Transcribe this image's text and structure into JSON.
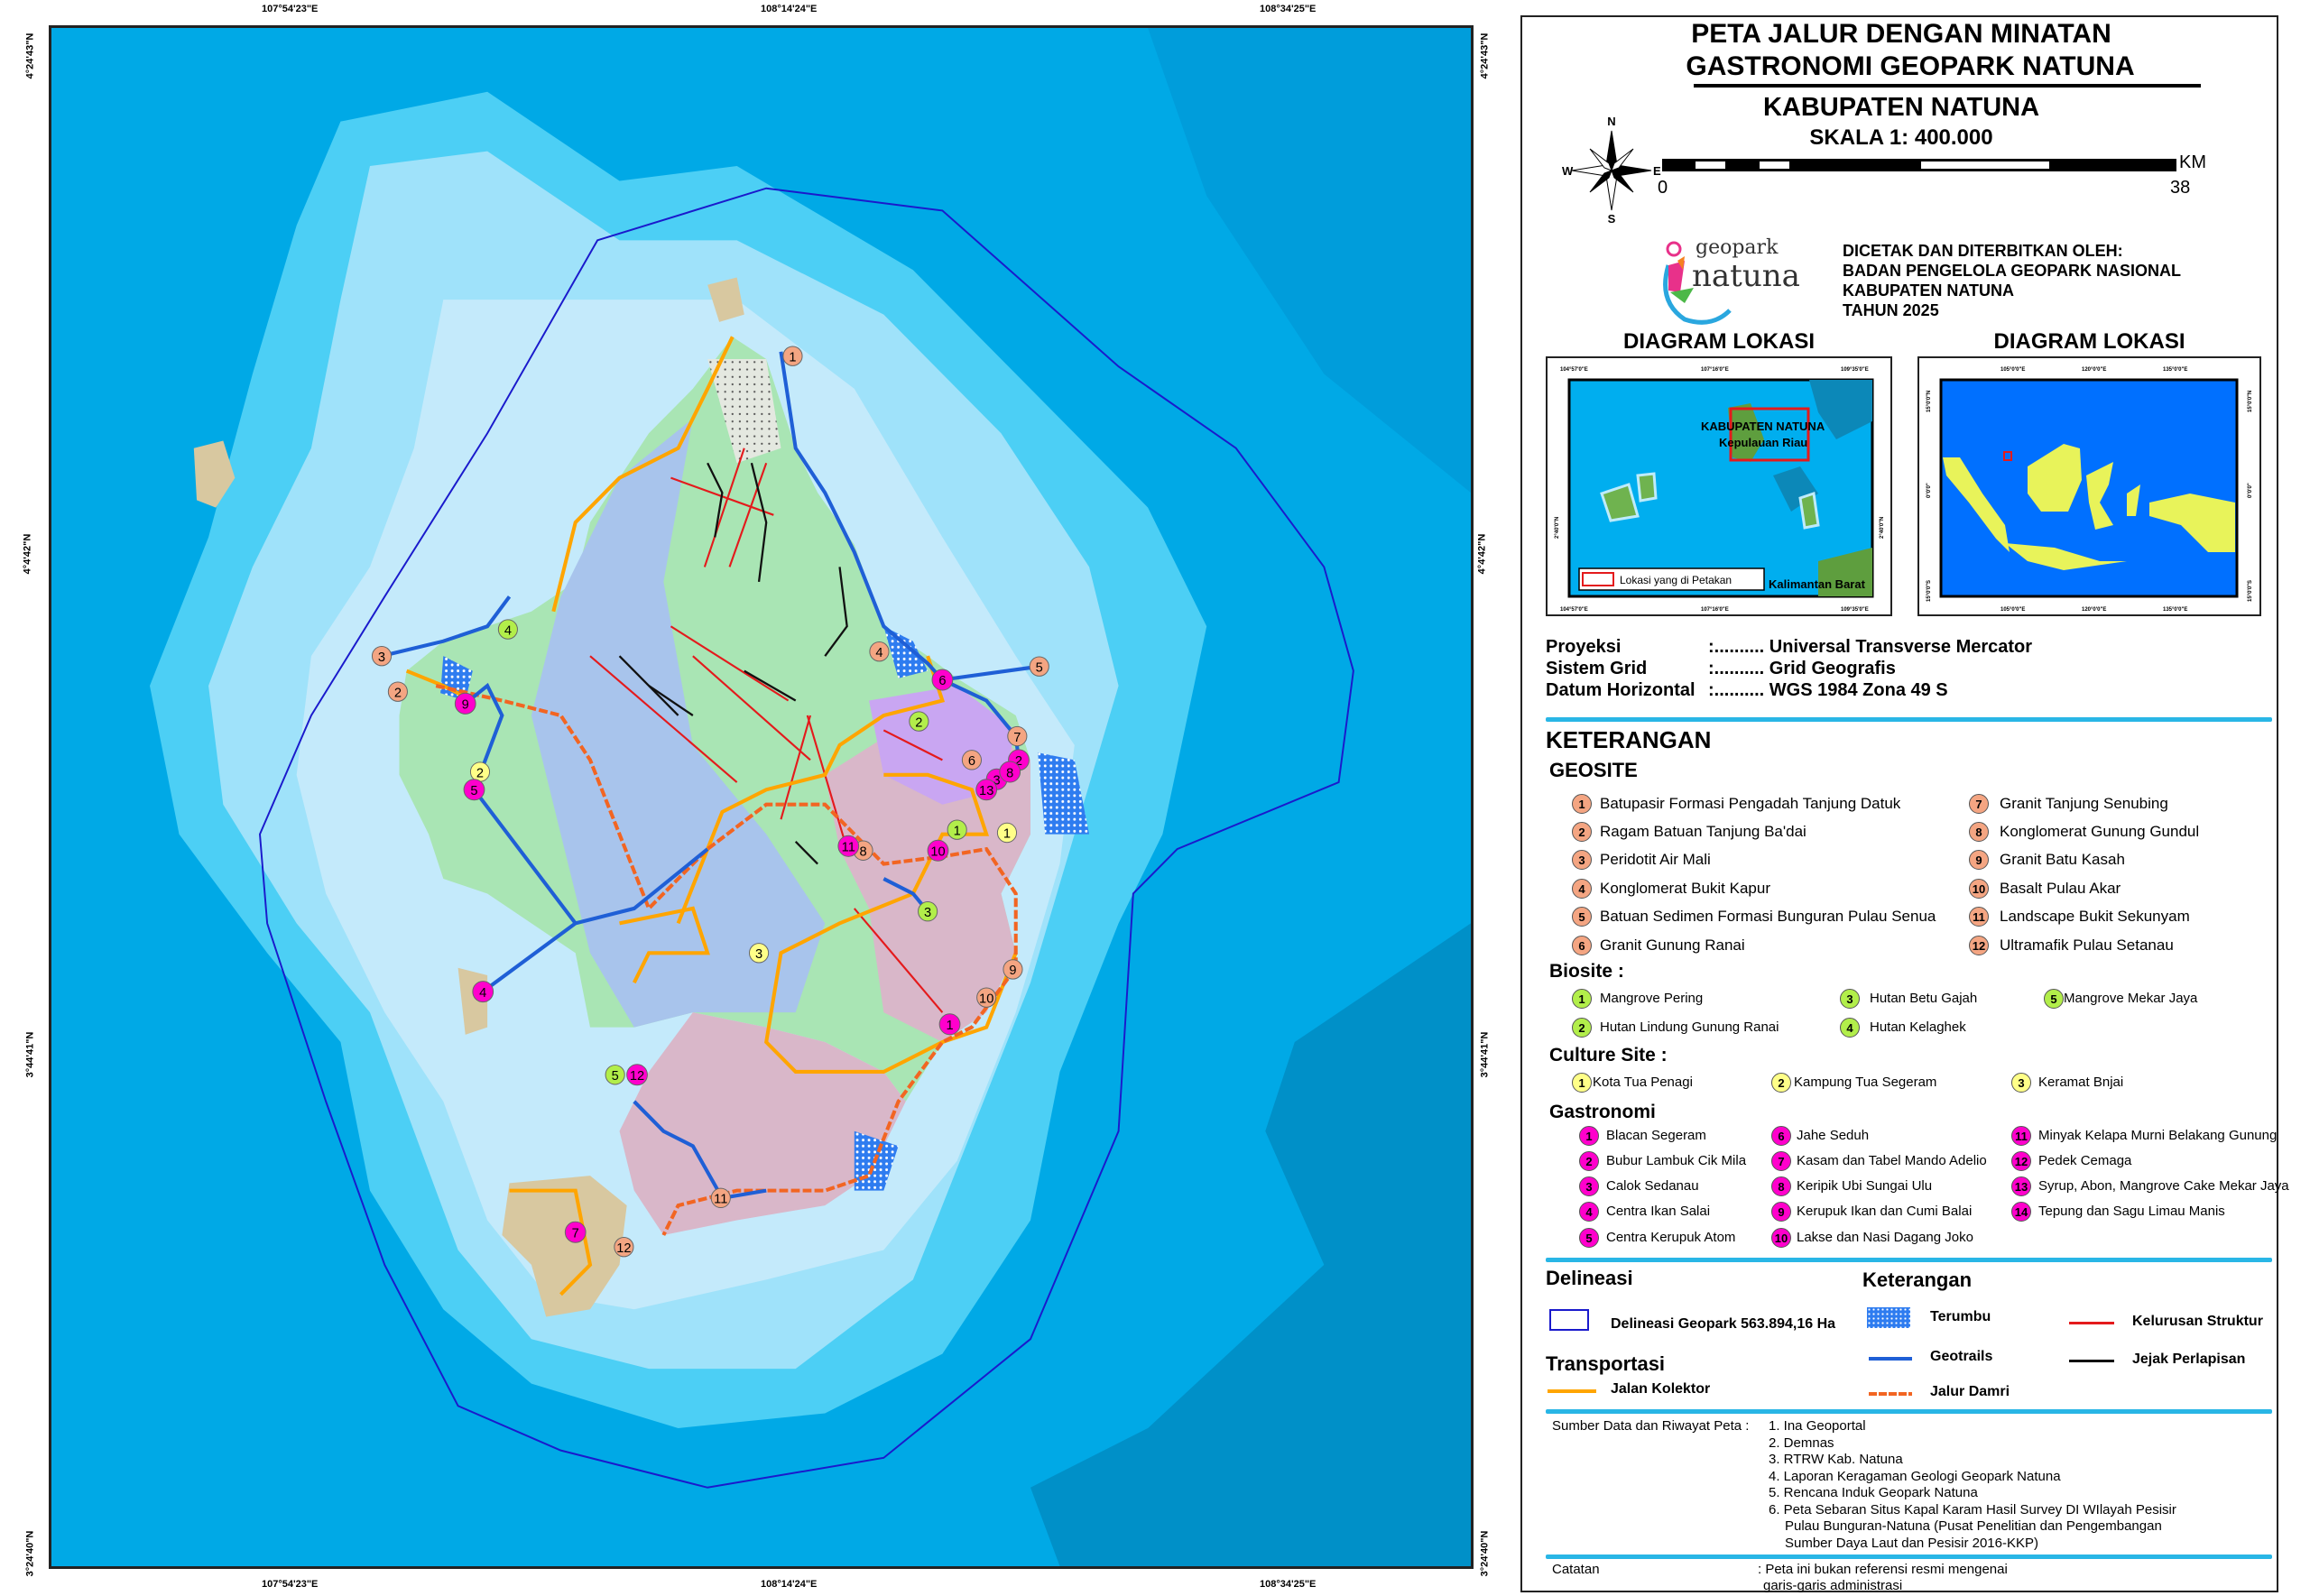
{
  "map": {
    "top_ticks": [
      "107°54'23\"E",
      "108°14'24\"E",
      "108°34'25\"E"
    ],
    "bottom_ticks": [
      "107°54'23\"E",
      "108°14'24\"E",
      "108°34'25\"E"
    ],
    "left_ticks": [
      "4°24'43\"N",
      "4°4'42\"N",
      "3°44'41\"N",
      "3°24'40\"N"
    ],
    "right_ticks": [
      "4°24'43\"N",
      "4°4'42\"N",
      "3°44'41\"N",
      "3°24'40\"N"
    ],
    "colors": {
      "deep_sea": "#0090C8",
      "sea": "#00A9E6",
      "shelf": "#4CCFF5",
      "shallow": "#9FE2FA",
      "coast": "#C4EAFB",
      "geosite": "#F4A582",
      "biosite": "#B2EE4A",
      "culture": "#FFFF88",
      "gastronomi": "#FF00CC",
      "geotrails": "#1F5FD6",
      "jalan_kolektor": "#FFA500",
      "jalur_damri": "#F26522",
      "kelurusan": "#E41A1C",
      "jejak": "#111111",
      "delineasi": "#1A1ACC"
    }
  },
  "title": {
    "line1": "PETA JALUR DENGAN MINATAN",
    "line2": "GASTRONOMI GEOPARK NATUNA",
    "region": "KABUPATEN NATUNA",
    "scale": "SKALA 1: 400.000"
  },
  "scalebar": {
    "start": "0",
    "end": "38",
    "unit": "KM"
  },
  "compass": {
    "n": "N",
    "s": "S",
    "e": "E",
    "w": "W"
  },
  "logo": {
    "line1": "geopark",
    "line2": "natuna"
  },
  "publisher": [
    "DICETAK DAN DITERBITKAN OLEH:",
    "BADAN PENGELOLA GEOPARK NASIONAL",
    "KABUPATEN NATUNA",
    "TAHUN 2025"
  ],
  "inset_left": {
    "heading": "DIAGRAM LOKASI",
    "ticks_x": [
      "104°57'0\"E",
      "107°16'0\"E",
      "109°35'0\"E"
    ],
    "ticks_y": [
      "2°40'0\"N"
    ],
    "label1": "KABUPATEN NATUNA",
    "label2": "Kepulauan Riau",
    "label3": "Kalimantan Barat",
    "legend": "Lokasi yang di Petakan"
  },
  "inset_right": {
    "heading": "DIAGRAM LOKASI",
    "ticks_x": [
      "105°0'0\"E",
      "120°0'0\"E",
      "135°0'0\"E"
    ],
    "ticks_y": [
      "15°0'0\"N",
      "0°0'0\"",
      "15°0'0\"S"
    ]
  },
  "projection": [
    {
      "label": "Proyeksi",
      "value": ":.......... Universal Transverse Mercator"
    },
    {
      "label": "Sistem Grid",
      "value": ":.......... Grid Geografis"
    },
    {
      "label": "Datum Horizontal",
      "value": ":.......... WGS 1984 Zona 49 S"
    }
  ],
  "legend": {
    "heading": "KETERANGAN",
    "geosite": {
      "heading": "GEOSITE",
      "items": [
        "Batupasir Formasi Pengadah Tanjung Datuk",
        "Ragam Batuan Tanjung Ba'dai",
        "Peridotit Air Mali",
        "Konglomerat Bukit Kapur",
        "Batuan Sedimen Formasi Bunguran Pulau Senua",
        "Granit Gunung Ranai",
        "Granit Tanjung Senubing",
        "Konglomerat Gunung Gundul",
        "Granit Batu Kasah",
        "Basalt Pulau Akar",
        "Landscape Bukit Sekunyam",
        "Ultramafik Pulau Setanau"
      ]
    },
    "biosite": {
      "heading": "Biosite :",
      "items": [
        "Mangrove Pering",
        "Hutan Lindung Gunung Ranai",
        "Hutan Betu Gajah",
        "Hutan Kelaghek",
        "Mangrove Mekar Jaya"
      ]
    },
    "culture": {
      "heading": "Culture Site :",
      "items": [
        "Kota Tua Penagi",
        "Kampung Tua Segeram",
        "Keramat Bnjai"
      ]
    },
    "gastronomi": {
      "heading": "Gastronomi",
      "items": [
        "Blacan Segeram",
        "Bubur Lambuk Cik Mila",
        "Calok Sedanau",
        "Centra Ikan Salai",
        "Centra Kerupuk Atom",
        "Jahe Seduh",
        "Kasam dan Tabel Mando Adelio",
        "Keripik Ubi Sungai Ulu",
        "Kerupuk Ikan dan Cumi Balai",
        "Lakse dan Nasi Dagang Joko",
        "Minyak Kelapa Murni Belakang Gunung",
        "Pedek Cemaga",
        "Syrup, Abon, Mangrove Cake Mekar Jaya",
        "Tepung dan Sagu Limau Manis"
      ]
    }
  },
  "delineasi": {
    "heading": "Delineasi",
    "item": "Delineasi Geopark 563.894,16 Ha"
  },
  "keterangan2": {
    "heading": "Keterangan",
    "terumbu": "Terumbu",
    "geotrails": "Geotrails",
    "jalur_damri": "Jalur Damri",
    "kelurusan": "Kelurusan Struktur",
    "jejak": "Jejak Perlapisan"
  },
  "transportasi": {
    "heading": "Transportasi",
    "item": "Jalan Kolektor"
  },
  "sources": {
    "label": "Sumber Data dan Riwayat Peta",
    "items": [
      "1. Ina Geoportal",
      "2. Demnas",
      "3. RTRW Kab. Natuna",
      "4. Laporan Keragaman Geologi Geopark Natuna",
      "5. Rencana Induk Geopark Natuna",
      "6. Peta Sebaran Situs Kapal Karam Hasil Survey DI WIlayah Pesisir",
      "Pulau Bunguran-Natuna (Pusat Penelitian dan Pengembangan",
      "Sumber Daya Laut dan Pesisir 2016-KKP)"
    ]
  },
  "note": {
    "label": "Catatan",
    "lines": [
      ": Peta ini bukan referensi resmi mengenai",
      "garis-garis administrasi"
    ]
  }
}
